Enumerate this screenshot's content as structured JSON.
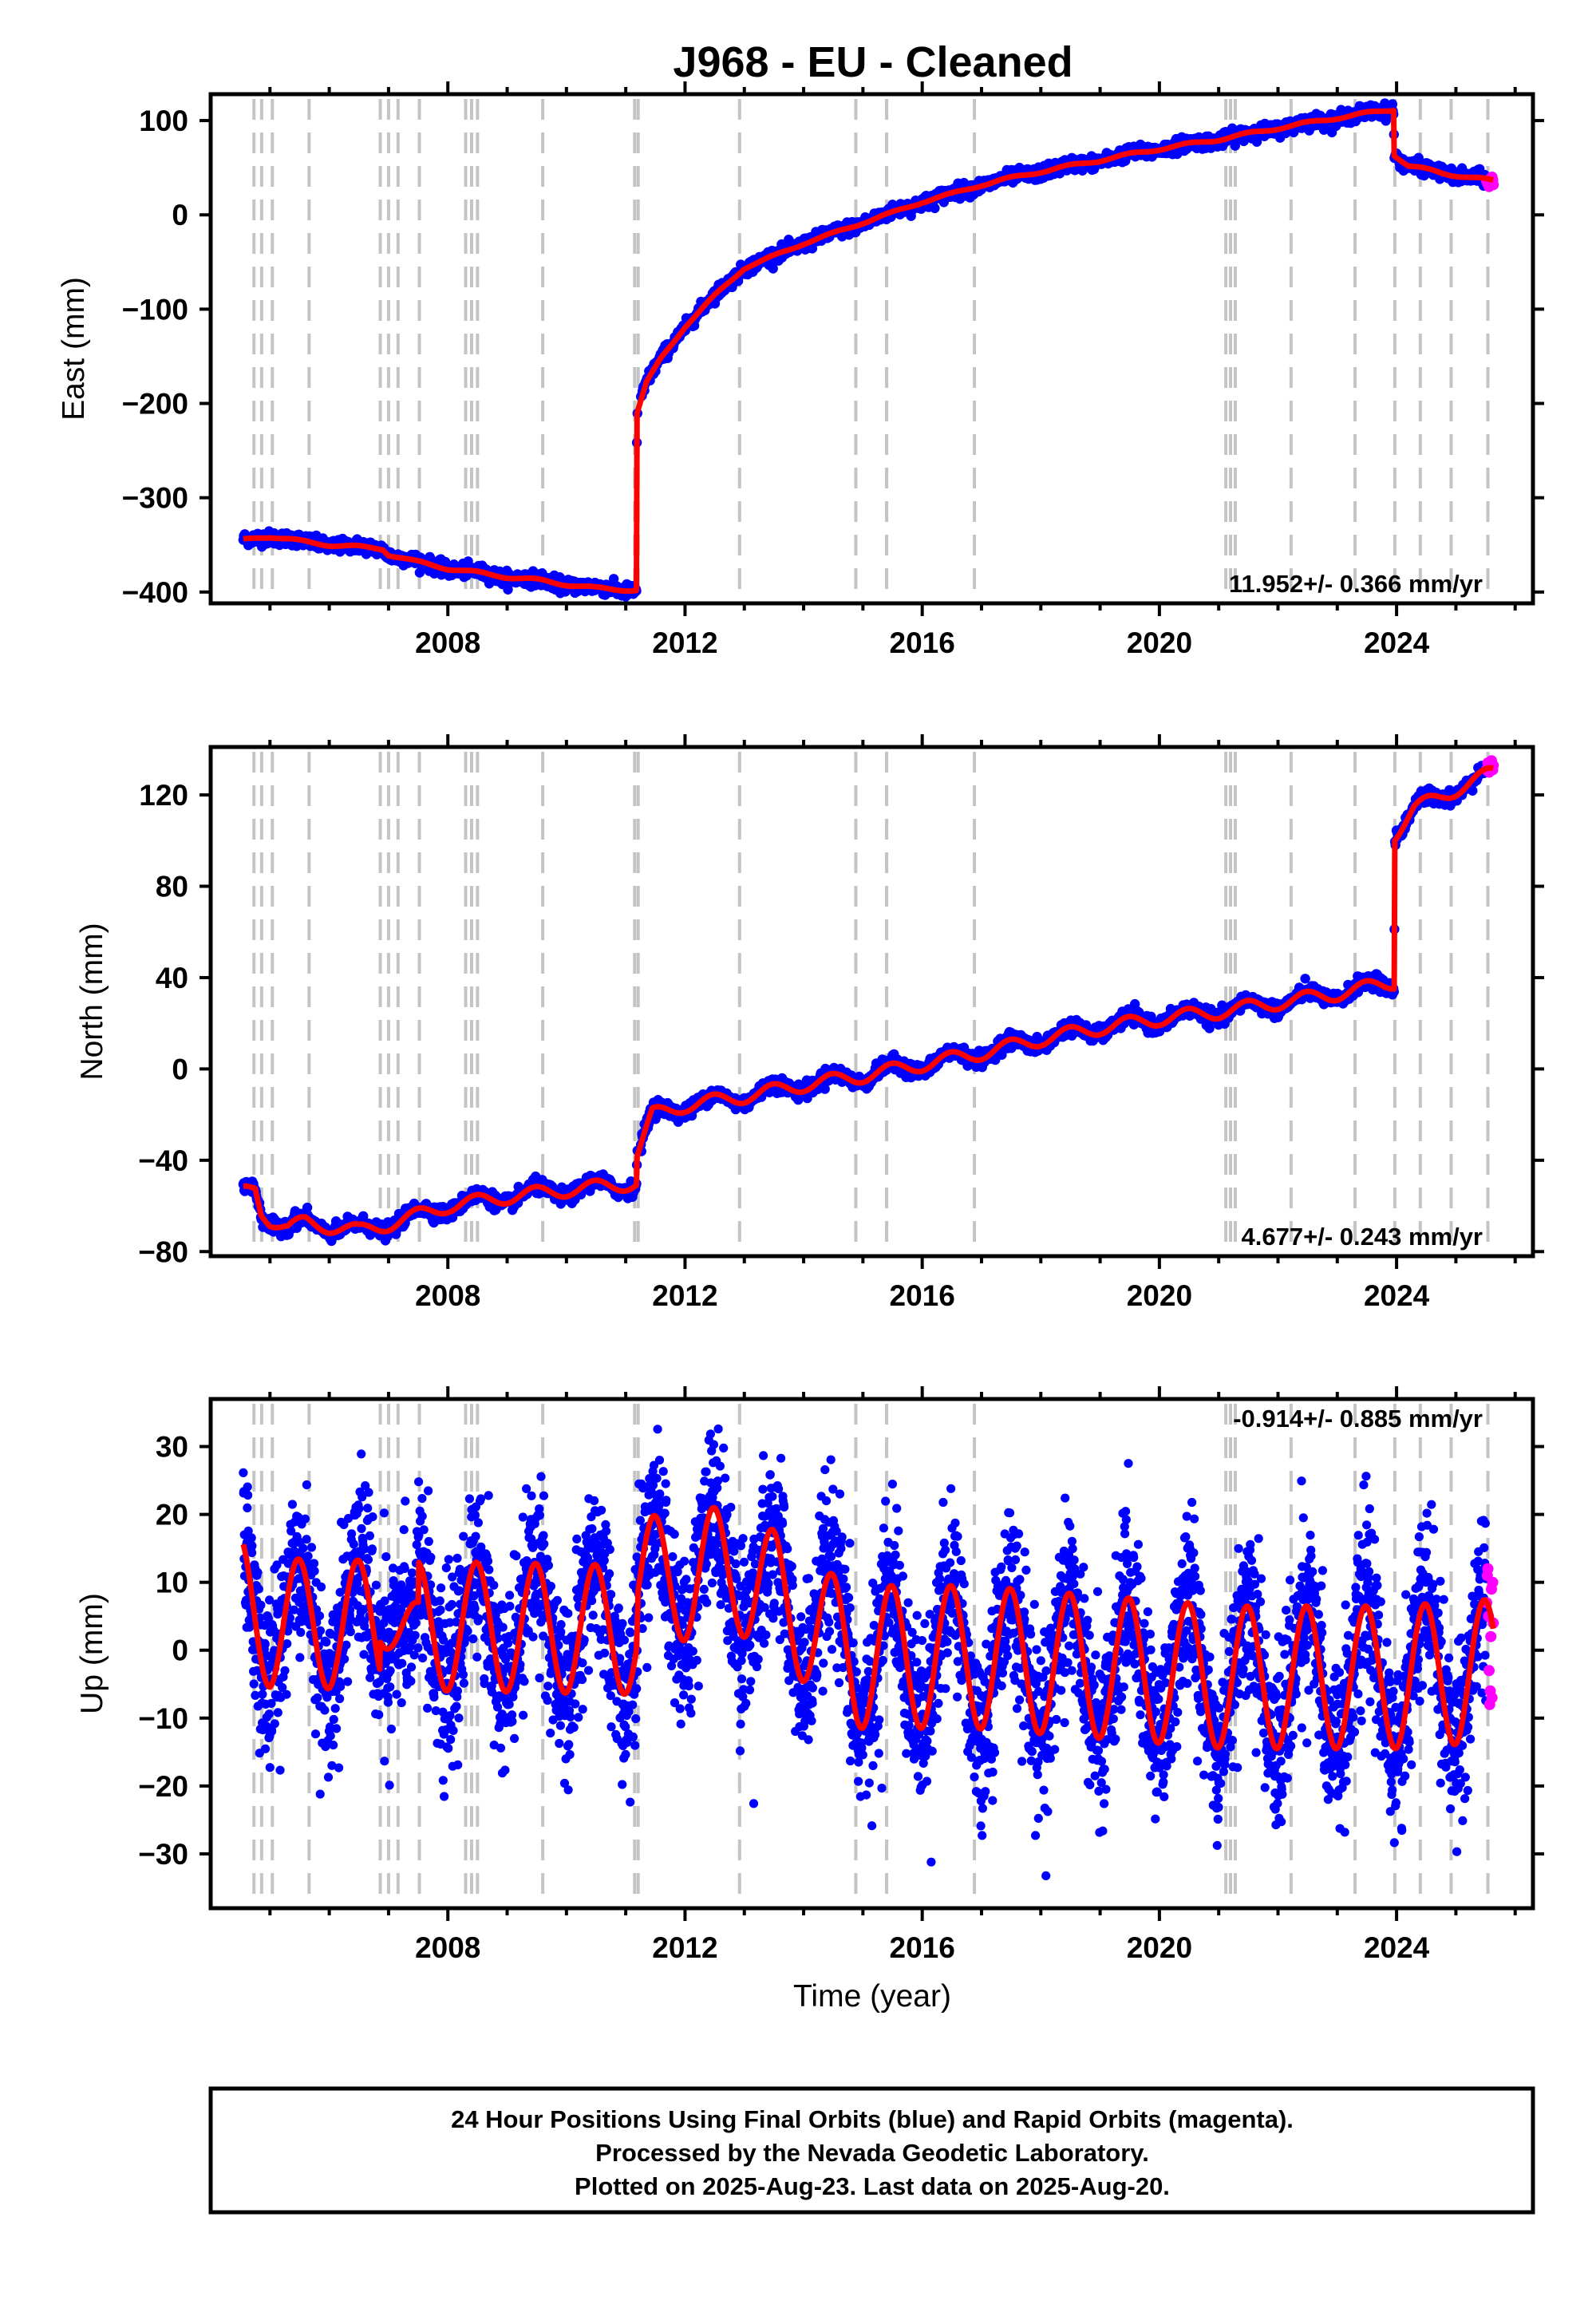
{
  "title": "J968  - EU - Cleaned",
  "xlabel": "Time (year)",
  "colors": {
    "final": "#0000ff",
    "rapid": "#ff00ff",
    "model": "#ff0000",
    "grid": "#c4c4c4"
  },
  "footer": {
    "line1": "24 Hour Positions Using Final Orbits (blue) and Rapid Orbits (magenta).",
    "line2": "Processed by the Nevada Geodetic Laboratory.",
    "line3": "Plotted on 2025-Aug-23. Last data on 2025-Aug-20."
  },
  "chart_data": [
    {
      "type": "scatter",
      "name": "east",
      "ylabel": "East (mm)",
      "rate_text": "11.952+/- 0.366 mm/yr",
      "xlim": [
        2004.0,
        2026.3
      ],
      "ylim": [
        -412,
        128
      ],
      "xticks": [
        2008,
        2012,
        2016,
        2020,
        2024
      ],
      "yticks": [
        -400,
        -300,
        -200,
        -100,
        0,
        100
      ],
      "yticklabels": [
        "−400",
        "−300",
        "−200",
        "−100",
        "0",
        "100"
      ],
      "equipment_changes": [
        2004.73,
        2004.86,
        2005.04,
        2005.66,
        2006.86,
        2007.0,
        2007.16,
        2007.52,
        2008.3,
        2008.4,
        2008.5,
        2009.6,
        2011.15,
        2011.21,
        2012.92,
        2014.88,
        2015.4,
        2016.88,
        2021.12,
        2021.2,
        2021.28,
        2022.22,
        2023.3,
        2023.97,
        2024.4,
        2024.92,
        2025.54
      ],
      "model_knots": [
        [
          2004.55,
          -345
        ],
        [
          2004.8,
          -342
        ],
        [
          2005.0,
          -341
        ],
        [
          2005.5,
          -346
        ],
        [
          2006.0,
          -350
        ],
        [
          2006.9,
          -354
        ],
        [
          2007.0,
          -360
        ],
        [
          2007.4,
          -367
        ],
        [
          2008.0,
          -375
        ],
        [
          2009.0,
          -384
        ],
        [
          2009.6,
          -388
        ],
        [
          2010.0,
          -392
        ],
        [
          2010.5,
          -396
        ],
        [
          2011.18,
          -398
        ],
        [
          2011.19,
          -210
        ],
        [
          2011.35,
          -178
        ],
        [
          2011.6,
          -152
        ],
        [
          2012.0,
          -118
        ],
        [
          2012.5,
          -86
        ],
        [
          2013.0,
          -56
        ],
        [
          2013.5,
          -44
        ],
        [
          2014.0,
          -30
        ],
        [
          2014.5,
          -20
        ],
        [
          2015.0,
          -8
        ],
        [
          2015.5,
          2
        ],
        [
          2016.0,
          14
        ],
        [
          2016.5,
          22
        ],
        [
          2017.0,
          32
        ],
        [
          2018.0,
          46
        ],
        [
          2019.0,
          58
        ],
        [
          2020.0,
          70
        ],
        [
          2021.0,
          80
        ],
        [
          2022.0,
          92
        ],
        [
          2023.0,
          103
        ],
        [
          2023.95,
          112
        ],
        [
          2023.96,
          64
        ],
        [
          2024.2,
          52
        ],
        [
          2024.8,
          44
        ],
        [
          2025.63,
          36
        ]
      ],
      "seasonal_amp": 1.5,
      "noise": 3.5,
      "rapid": [
        [
          2025.52,
          36
        ],
        [
          2025.54,
          33
        ],
        [
          2025.56,
          30
        ],
        [
          2025.58,
          38
        ],
        [
          2025.6,
          34
        ],
        [
          2025.61,
          40
        ],
        [
          2025.62,
          37
        ],
        [
          2025.63,
          32
        ]
      ]
    },
    {
      "type": "scatter",
      "name": "north",
      "ylabel": "North (mm)",
      "rate_text": "4.677+/- 0.243 mm/yr",
      "xlim": [
        2004.0,
        2026.3
      ],
      "ylim": [
        -82,
        141
      ],
      "xticks": [
        2008,
        2012,
        2016,
        2020,
        2024
      ],
      "yticks": [
        -80,
        -40,
        0,
        40,
        80,
        120
      ],
      "yticklabels": [
        "−80",
        "−40",
        "0",
        "40",
        "80",
        "120"
      ],
      "equipment_changes": [
        2004.73,
        2004.86,
        2005.04,
        2005.66,
        2006.86,
        2007.0,
        2007.16,
        2007.52,
        2008.3,
        2008.4,
        2008.5,
        2009.6,
        2011.15,
        2011.21,
        2012.92,
        2014.88,
        2015.4,
        2016.88,
        2021.12,
        2021.2,
        2021.28,
        2022.22,
        2023.3,
        2023.97,
        2024.4,
        2024.92,
        2025.54
      ],
      "model_knots": [
        [
          2004.55,
          -54
        ],
        [
          2004.75,
          -52
        ],
        [
          2004.85,
          -62
        ],
        [
          2005.0,
          -66
        ],
        [
          2005.3,
          -70
        ],
        [
          2005.6,
          -67
        ],
        [
          2006.0,
          -69
        ],
        [
          2006.5,
          -71
        ],
        [
          2007.0,
          -68
        ],
        [
          2007.5,
          -64
        ],
        [
          2008.0,
          -60
        ],
        [
          2009.0,
          -56
        ],
        [
          2010.0,
          -53
        ],
        [
          2011.18,
          -50
        ],
        [
          2011.19,
          -38
        ],
        [
          2011.45,
          -20
        ],
        [
          2012.0,
          -16
        ],
        [
          2013.0,
          -12
        ],
        [
          2014.0,
          -7
        ],
        [
          2015.0,
          -3
        ],
        [
          2016.0,
          2
        ],
        [
          2017.0,
          7
        ],
        [
          2018.0,
          13
        ],
        [
          2019.0,
          18
        ],
        [
          2020.0,
          22
        ],
        [
          2021.0,
          25
        ],
        [
          2022.0,
          29
        ],
        [
          2023.0,
          33
        ],
        [
          2023.96,
          38
        ],
        [
          2023.97,
          103
        ],
        [
          2024.3,
          114
        ],
        [
          2024.8,
          120
        ],
        [
          2025.63,
          130
        ]
      ],
      "seasonal_amp": 3.0,
      "noise": 1.6,
      "rapid": [
        [
          2025.52,
          131
        ],
        [
          2025.54,
          134
        ],
        [
          2025.56,
          130
        ],
        [
          2025.58,
          133
        ],
        [
          2025.6,
          135
        ],
        [
          2025.62,
          131
        ],
        [
          2025.63,
          133
        ]
      ]
    },
    {
      "type": "scatter",
      "name": "up",
      "ylabel": "Up (mm)",
      "rate_text": "-0.914+/- 0.885 mm/yr",
      "xlim": [
        2004.0,
        2026.3
      ],
      "ylim": [
        -38,
        37
      ],
      "xticks": [
        2008,
        2012,
        2016,
        2020,
        2024
      ],
      "yticks": [
        -30,
        -20,
        -10,
        0,
        10,
        20,
        30
      ],
      "yticklabels": [
        "−30",
        "−20",
        "−10",
        "0",
        "10",
        "20",
        "30"
      ],
      "equipment_changes": [
        2004.73,
        2004.86,
        2005.04,
        2005.66,
        2006.86,
        2007.0,
        2007.16,
        2007.52,
        2008.3,
        2008.4,
        2008.5,
        2009.6,
        2011.15,
        2011.21,
        2012.92,
        2014.88,
        2015.4,
        2016.88,
        2021.12,
        2021.2,
        2021.28,
        2022.22,
        2023.3,
        2023.97,
        2024.4,
        2024.92,
        2025.54
      ],
      "model_knots": [
        [
          2004.55,
          7
        ],
        [
          2005.0,
          4
        ],
        [
          2011.18,
          3
        ],
        [
          2011.21,
          10
        ],
        [
          2012.9,
          12
        ],
        [
          2014.9,
          -1
        ],
        [
          2016.88,
          -1
        ],
        [
          2021.15,
          -4
        ],
        [
          2023.97,
          -4
        ],
        [
          2025.63,
          -3
        ]
      ],
      "seasonal_amp": 9.5,
      "seasonal_amp_late": 10.5,
      "noise": 6.0,
      "rapid": [
        [
          2025.52,
          7
        ],
        [
          2025.53,
          11
        ],
        [
          2025.54,
          12
        ],
        [
          2025.55,
          5
        ],
        [
          2025.56,
          -3
        ],
        [
          2025.57,
          -8
        ],
        [
          2025.58,
          -6
        ],
        [
          2025.59,
          2
        ],
        [
          2025.6,
          9
        ],
        [
          2025.61,
          -7
        ],
        [
          2025.62,
          10
        ],
        [
          2025.63,
          4
        ]
      ]
    }
  ]
}
